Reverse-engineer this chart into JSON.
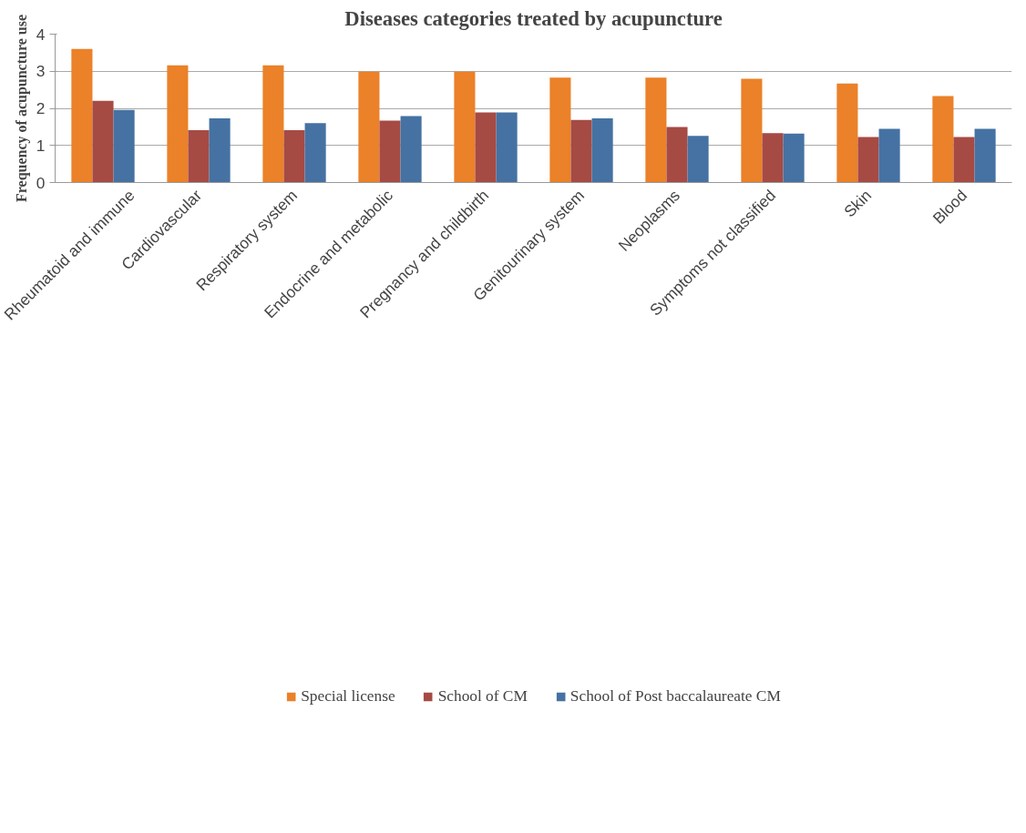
{
  "chart_data": {
    "type": "bar",
    "title": "Diseases categories treated by acupuncture",
    "ylabel": "Frequency of acupuncture use",
    "categories": [
      "Rheumatoid and immune",
      "Cardiovascular",
      "Respiratory system",
      "Endocrine and metabolic",
      "Pregnancy and childbirth",
      "Genitourinary system",
      "Neoplasms",
      "Symptoms not classified",
      "Skin",
      "Blood"
    ],
    "series": [
      {
        "name": "Special license",
        "color": "#eb8128",
        "values": [
          3.6,
          3.16,
          3.16,
          2.99,
          2.99,
          2.83,
          2.83,
          2.8,
          2.67,
          2.33
        ]
      },
      {
        "name": "School of CM",
        "color": "#a64a44",
        "values": [
          2.2,
          1.41,
          1.41,
          1.67,
          1.89,
          1.69,
          1.5,
          1.33,
          1.23,
          1.23
        ]
      },
      {
        "name": "School of Post baccalaureate CM",
        "color": "#4572a2",
        "values": [
          1.96,
          1.73,
          1.6,
          1.79,
          1.89,
          1.73,
          1.26,
          1.32,
          1.45,
          1.45
        ]
      }
    ],
    "ylim": [
      0,
      4
    ],
    "yticks": [
      0,
      1,
      2,
      3,
      4
    ],
    "grid": "y",
    "legend": "bottom"
  }
}
